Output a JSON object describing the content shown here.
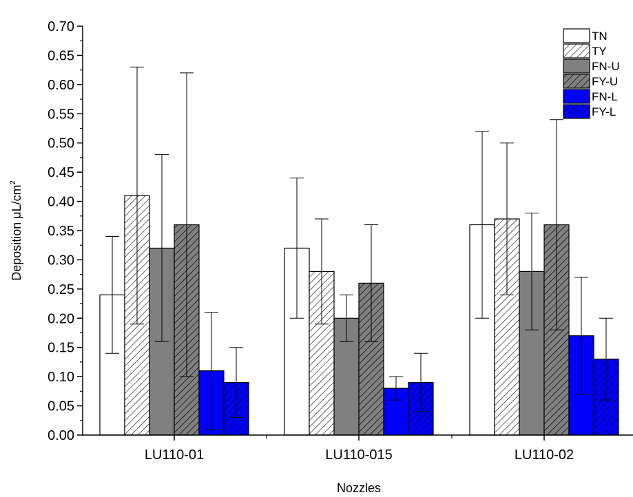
{
  "chart_data": {
    "type": "bar",
    "title": "",
    "xlabel": "Nozzles",
    "ylabel": "Deposition μL/cm²",
    "ylabel_text": "Deposition μL/cm",
    "ylabel_sup": "2",
    "ylim": [
      0,
      0.7
    ],
    "yticks": [
      "0.00",
      "0.05",
      "0.10",
      "0.15",
      "0.20",
      "0.25",
      "0.30",
      "0.35",
      "0.40",
      "0.45",
      "0.50",
      "0.55",
      "0.60",
      "0.65",
      "0.70"
    ],
    "categories": [
      "LU110-01",
      "LU110-015",
      "LU110-02"
    ],
    "legend_position": "top-right",
    "grid": false,
    "series": [
      {
        "name": "TN",
        "values": [
          0.24,
          0.32,
          0.36
        ],
        "errors": [
          0.1,
          0.12,
          0.16
        ],
        "fill": "#ffffff",
        "hatch": false
      },
      {
        "name": "TY",
        "values": [
          0.41,
          0.28,
          0.37
        ],
        "errors": [
          0.22,
          0.09,
          0.13
        ],
        "fill": "#ffffff",
        "hatch": true
      },
      {
        "name": "FN-U",
        "values": [
          0.32,
          0.2,
          0.28
        ],
        "errors": [
          0.16,
          0.04,
          0.1
        ],
        "fill": "#808080",
        "hatch": false
      },
      {
        "name": "FY-U",
        "values": [
          0.36,
          0.26,
          0.36
        ],
        "errors": [
          0.26,
          0.1,
          0.18
        ],
        "fill": "#808080",
        "hatch": true
      },
      {
        "name": "FN-L",
        "values": [
          0.11,
          0.08,
          0.17
        ],
        "errors": [
          0.1,
          0.02,
          0.1
        ],
        "fill": "#0000ff",
        "hatch": false
      },
      {
        "name": "FY-L",
        "values": [
          0.09,
          0.09,
          0.13
        ],
        "errors": [
          0.06,
          0.05,
          0.07
        ],
        "fill": "#0000ff",
        "hatch": true
      }
    ]
  }
}
